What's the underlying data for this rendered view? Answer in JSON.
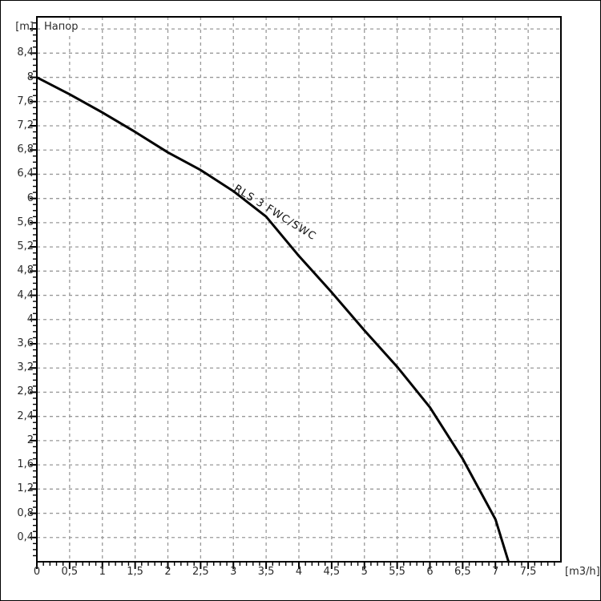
{
  "chart_data": {
    "type": "line",
    "title": "Напор",
    "y_axis": {
      "unit_label": "[m]",
      "min": 0,
      "max": 9,
      "major_step": 0.4,
      "minor_step": 0.1,
      "labels_from": 0.4,
      "labels_to": 8.4
    },
    "x_axis": {
      "unit_label": "[m3/h]",
      "min": 0,
      "max": 8,
      "major_step": 0.5,
      "minor_step": 0.1,
      "labels_from": 0,
      "labels_to": 7.5
    },
    "decimal_separator": ",",
    "grid": {
      "color": "#999999",
      "dash": "4 4"
    },
    "frame_color": "#000000",
    "curve_color": "#000000",
    "text_color": "#2b2b2b",
    "series": [
      {
        "name": "RLS 3 FWC/SWC",
        "points": [
          [
            0,
            8.0
          ],
          [
            0.5,
            7.72
          ],
          [
            1.0,
            7.42
          ],
          [
            1.5,
            7.1
          ],
          [
            2.0,
            6.76
          ],
          [
            2.5,
            6.47
          ],
          [
            3.0,
            6.12
          ],
          [
            3.5,
            5.7
          ],
          [
            4.0,
            5.05
          ],
          [
            4.5,
            4.45
          ],
          [
            5.0,
            3.82
          ],
          [
            5.5,
            3.22
          ],
          [
            6.0,
            2.55
          ],
          [
            6.5,
            1.7
          ],
          [
            7.0,
            0.7
          ],
          [
            7.2,
            0
          ]
        ]
      }
    ],
    "curve_label": {
      "text": "RLS 3 FWC/SWC",
      "angle_deg": 32
    }
  }
}
